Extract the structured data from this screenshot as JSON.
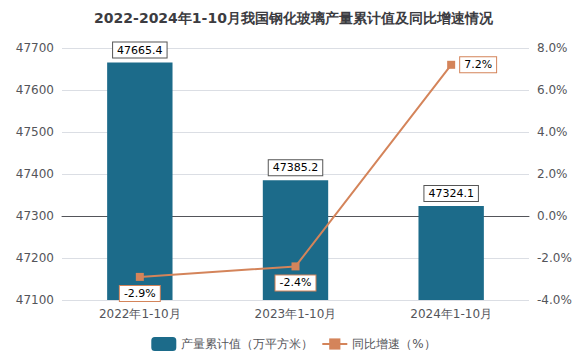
{
  "chart_data": {
    "type": "bar",
    "title": "2022-2024年1-10月我国钢化玻璃产量累计值及同比增速情况",
    "categories": [
      "2022年1-10月",
      "2023年1-10月",
      "2024年1-10月"
    ],
    "series": [
      {
        "name": "产量累计值（万平方米）",
        "type": "bar",
        "color": "#1c6b8a",
        "values": [
          47665.4,
          47385.2,
          47324.1
        ]
      },
      {
        "name": "同比增速（%）",
        "type": "line",
        "color": "#d4845a",
        "axis": "y2",
        "marker": "square",
        "values": [
          -2.9,
          -2.4,
          7.2
        ],
        "value_labels": [
          "-2.9%",
          "-2.4%",
          "7.2%"
        ]
      }
    ],
    "ylim": [
      47100,
      47700
    ],
    "yticks": [
      47100,
      47200,
      47300,
      47400,
      47500,
      47600,
      47700
    ],
    "y2lim": [
      -4.0,
      8.0
    ],
    "y2ticks": [
      {
        "value": -4.0,
        "label": "-4.0%"
      },
      {
        "value": -2.0,
        "label": "-2.0%"
      },
      {
        "value": 0.0,
        "label": "0.0%"
      },
      {
        "value": 2.0,
        "label": "2.0%"
      },
      {
        "value": 4.0,
        "label": "4.0%"
      },
      {
        "value": 6.0,
        "label": "6.0%"
      },
      {
        "value": 8.0,
        "label": "8.0%"
      }
    ],
    "grid": true,
    "data_labels": true,
    "legend": "bottom"
  }
}
